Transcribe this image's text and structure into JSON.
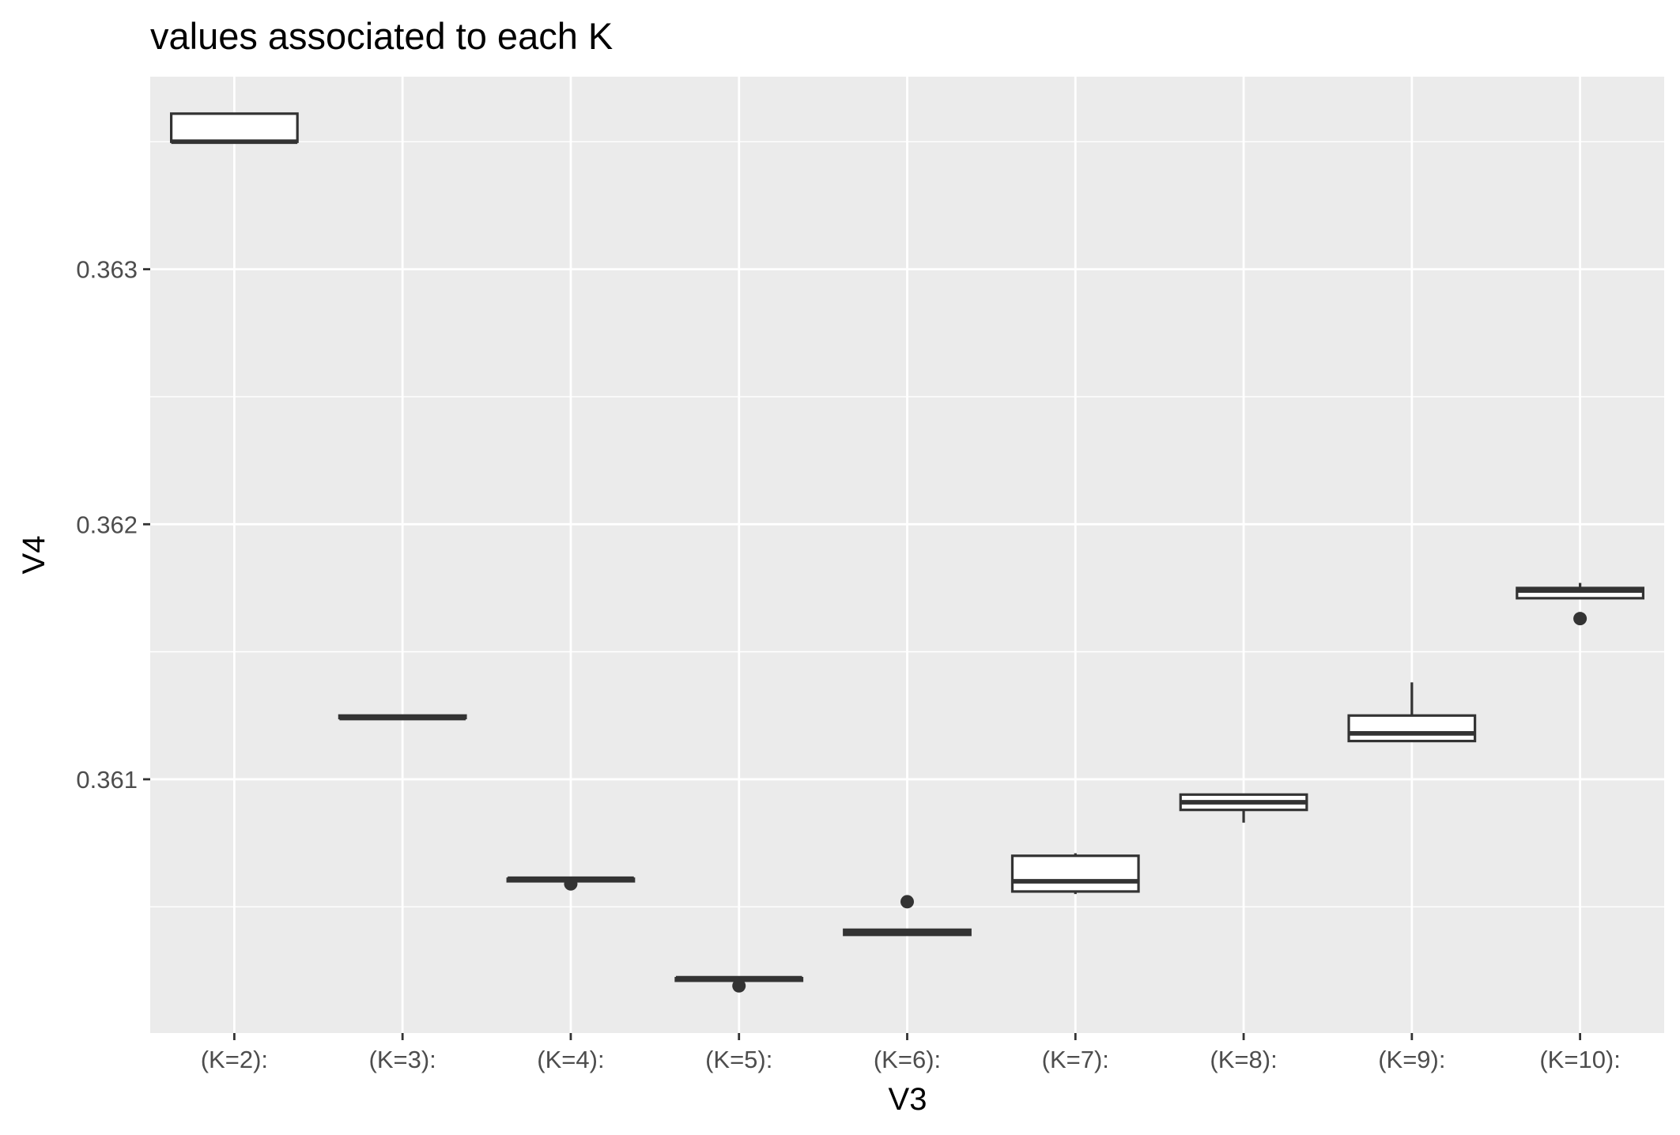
{
  "chart_data": {
    "type": "boxplot",
    "title": "values associated to each K",
    "xlabel": "V3",
    "ylabel": "V4",
    "categories": [
      "(K=2):",
      "(K=3):",
      "(K=4):",
      "(K=5):",
      "(K=6):",
      "(K=7):",
      "(K=8):",
      "(K=9):",
      "(K=10):"
    ],
    "boxes": [
      {
        "category": "(K=2):",
        "lower_whisker": 0.3635,
        "q1": 0.3635,
        "median": 0.3635,
        "q3": 0.36361,
        "upper_whisker": 0.36361,
        "outliers": []
      },
      {
        "category": "(K=3):",
        "lower_whisker": 0.36124,
        "q1": 0.36124,
        "median": 0.36124,
        "q3": 0.36125,
        "upper_whisker": 0.36125,
        "outliers": []
      },
      {
        "category": "(K=4):",
        "lower_whisker": 0.3606,
        "q1": 0.3606,
        "median": 0.36061,
        "q3": 0.36061,
        "upper_whisker": 0.36061,
        "outliers": [
          0.36059
        ]
      },
      {
        "category": "(K=5):",
        "lower_whisker": 0.36021,
        "q1": 0.36021,
        "median": 0.36022,
        "q3": 0.36022,
        "upper_whisker": 0.36022,
        "outliers": [
          0.36019
        ]
      },
      {
        "category": "(K=6):",
        "lower_whisker": 0.36039,
        "q1": 0.36039,
        "median": 0.3604,
        "q3": 0.36041,
        "upper_whisker": 0.36041,
        "outliers": [
          0.36052
        ]
      },
      {
        "category": "(K=7):",
        "lower_whisker": 0.36055,
        "q1": 0.36056,
        "median": 0.3606,
        "q3": 0.3607,
        "upper_whisker": 0.36071,
        "outliers": []
      },
      {
        "category": "(K=8):",
        "lower_whisker": 0.36083,
        "q1": 0.36088,
        "median": 0.36091,
        "q3": 0.36094,
        "upper_whisker": 0.36094,
        "outliers": []
      },
      {
        "category": "(K=9):",
        "lower_whisker": 0.36115,
        "q1": 0.36115,
        "median": 0.36118,
        "q3": 0.36125,
        "upper_whisker": 0.36138,
        "outliers": []
      },
      {
        "category": "(K=10):",
        "lower_whisker": 0.36171,
        "q1": 0.36171,
        "median": 0.36174,
        "q3": 0.36175,
        "upper_whisker": 0.36177,
        "outliers": [
          0.36163
        ]
      }
    ],
    "y_ticks": [
      0.361,
      0.362,
      0.363
    ],
    "y_tick_labels": [
      "0.361",
      "0.362",
      "0.363"
    ],
    "ylim": [
      0.360005,
      0.363755
    ],
    "grid": true,
    "colors": {
      "panel_background": "#ebebeb",
      "grid": "#ffffff",
      "box_fill": "#ffffff",
      "box_line": "#333333",
      "tick_text": "#4d4d4d",
      "axis_text": "#000000"
    }
  }
}
